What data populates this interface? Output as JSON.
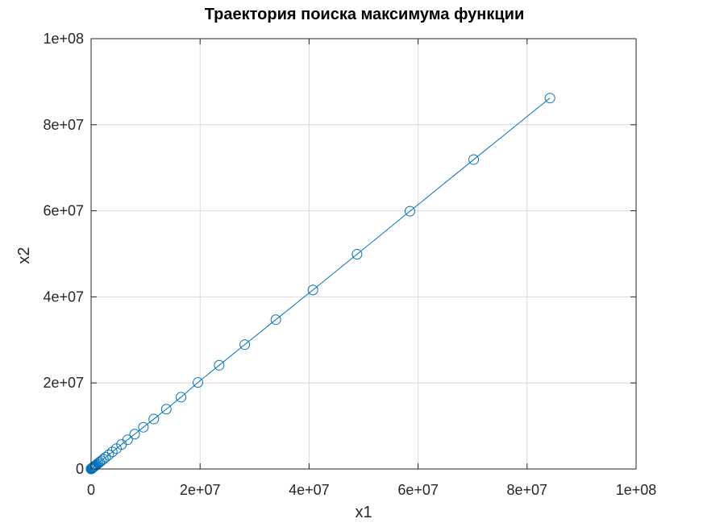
{
  "chart_data": {
    "type": "line",
    "title": "Траектория поиска максимума функции",
    "xlabel": "x1",
    "ylabel": "x2",
    "xlim": [
      0,
      100000000
    ],
    "ylim": [
      0,
      100000000
    ],
    "xticks": [
      0,
      20000000,
      40000000,
      60000000,
      80000000,
      100000000
    ],
    "yticks": [
      0,
      20000000,
      40000000,
      60000000,
      80000000,
      100000000
    ],
    "xtick_labels": [
      "0",
      "2e+07",
      "4e+07",
      "6e+07",
      "8e+07",
      "1e+08"
    ],
    "ytick_labels": [
      "0",
      "2e+07",
      "4e+07",
      "6e+07",
      "8e+07",
      "1e+08"
    ],
    "grid": true,
    "color": "#0072bd",
    "marker": "circle",
    "series": [
      {
        "x": [
          0,
          20000,
          50000,
          80000,
          110000,
          150000,
          200000,
          260000,
          330000,
          410000,
          500000,
          620000,
          750000,
          900000,
          1080000,
          1300000,
          1560000,
          1870000,
          2240000,
          2690000,
          3230000,
          3880000,
          4650000,
          5580000,
          6700000,
          8000000,
          9600000,
          11500000,
          13800000,
          16500000,
          19600000,
          23500000,
          28200000,
          33900000,
          40700000,
          48800000,
          58500000,
          70200000,
          84200000
        ],
        "y": [
          0,
          20000,
          50000,
          80000,
          110000,
          150000,
          200000,
          260000,
          330000,
          410000,
          500000,
          620000,
          750000,
          900000,
          1100000,
          1320000,
          1590000,
          1900000,
          2280000,
          2740000,
          3290000,
          3950000,
          4740000,
          5690000,
          6800000,
          8100000,
          9700000,
          11600000,
          13900000,
          16700000,
          20100000,
          24100000,
          28900000,
          34700000,
          41600000,
          49900000,
          59900000,
          71900000,
          86200000
        ]
      }
    ]
  }
}
